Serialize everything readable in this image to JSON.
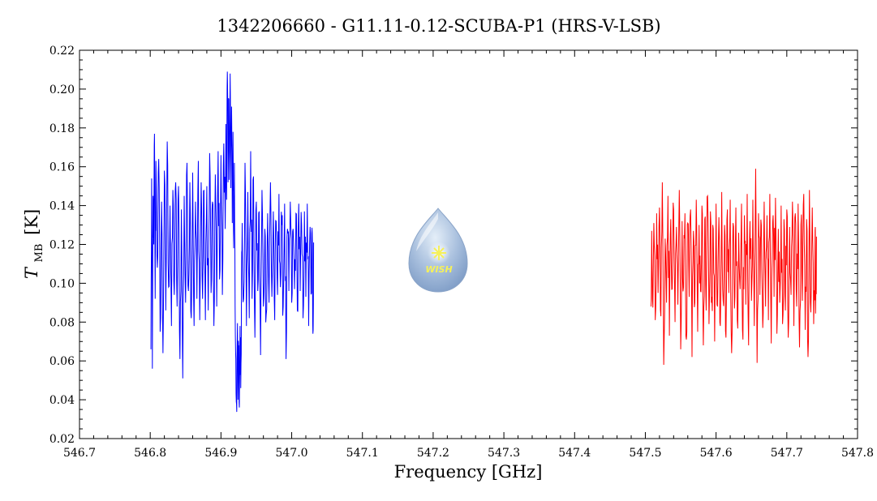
{
  "chart_data": {
    "type": "line",
    "title": "1342206660 - G11.11-0.12-SCUBA-P1 (HRS-V-LSB)",
    "xlabel": "Frequency [GHz]",
    "ylabel_main": "T",
    "ylabel_sub": "MB",
    "ylabel_unit": "[K]",
    "xlim": [
      546.7,
      547.8
    ],
    "ylim": [
      0.02,
      0.22
    ],
    "xticks": [
      "546.7",
      "546.8",
      "546.9",
      "547.0",
      "547.1",
      "547.2",
      "547.3",
      "547.4",
      "547.5",
      "547.6",
      "547.7",
      "547.8"
    ],
    "yticks": [
      "0.02",
      "0.04",
      "0.06",
      "0.08",
      "0.10",
      "0.12",
      "0.14",
      "0.16",
      "0.18",
      "0.20",
      "0.22"
    ],
    "grid": false,
    "logo_text": "WISH",
    "series": [
      {
        "color": "#0000ff",
        "x_range": [
          546.801,
          547.031
        ],
        "points": [
          [
            546.801,
            0.066
          ],
          [
            546.802,
            0.154
          ],
          [
            546.803,
            0.056
          ],
          [
            546.804,
            0.145
          ],
          [
            546.805,
            0.12
          ],
          [
            546.806,
            0.177
          ],
          [
            546.807,
            0.092
          ],
          [
            546.808,
            0.163
          ],
          [
            546.81,
            0.108
          ],
          [
            546.812,
            0.164
          ],
          [
            546.814,
            0.075
          ],
          [
            546.816,
            0.142
          ],
          [
            546.818,
            0.064
          ],
          [
            546.82,
            0.158
          ],
          [
            546.822,
            0.086
          ],
          [
            546.824,
            0.173
          ],
          [
            546.826,
            0.098
          ],
          [
            546.828,
            0.14
          ],
          [
            546.83,
            0.078
          ],
          [
            546.832,
            0.148
          ],
          [
            546.834,
            0.094
          ],
          [
            546.836,
            0.152
          ],
          [
            546.838,
            0.088
          ],
          [
            546.84,
            0.15
          ],
          [
            546.842,
            0.061
          ],
          [
            546.844,
            0.138
          ],
          [
            546.846,
            0.051
          ],
          [
            546.848,
            0.145
          ],
          [
            546.85,
            0.09
          ],
          [
            546.852,
            0.162
          ],
          [
            546.854,
            0.096
          ],
          [
            546.856,
            0.152
          ],
          [
            546.858,
            0.082
          ],
          [
            546.86,
            0.157
          ],
          [
            546.862,
            0.078
          ],
          [
            546.864,
            0.142
          ],
          [
            546.866,
            0.092
          ],
          [
            546.868,
            0.163
          ],
          [
            546.87,
            0.081
          ],
          [
            546.872,
            0.152
          ],
          [
            546.874,
            0.092
          ],
          [
            546.876,
            0.148
          ],
          [
            546.878,
            0.081
          ],
          [
            546.88,
            0.15
          ],
          [
            546.882,
            0.086
          ],
          [
            546.884,
            0.167
          ],
          [
            546.886,
            0.095
          ],
          [
            546.888,
            0.142
          ],
          [
            546.89,
            0.078
          ],
          [
            546.892,
            0.156
          ],
          [
            546.894,
            0.088
          ],
          [
            546.896,
            0.168
          ],
          [
            546.898,
            0.102
          ],
          [
            546.9,
            0.166
          ],
          [
            546.902,
            0.094
          ],
          [
            546.904,
            0.172
          ],
          [
            546.906,
            0.128
          ],
          [
            546.907,
            0.182
          ],
          [
            546.908,
            0.143
          ],
          [
            546.909,
            0.209
          ],
          [
            546.91,
            0.152
          ],
          [
            546.911,
            0.195
          ],
          [
            546.912,
            0.162
          ],
          [
            546.913,
            0.208
          ],
          [
            546.914,
            0.149
          ],
          [
            546.915,
            0.191
          ],
          [
            546.916,
            0.131
          ],
          [
            546.917,
            0.178
          ],
          [
            546.918,
            0.118
          ],
          [
            546.919,
            0.162
          ],
          [
            546.92,
            0.088
          ],
          [
            546.921,
            0.061
          ],
          [
            546.922,
            0.038
          ],
          [
            546.923,
            0.071
          ],
          [
            546.924,
            0.04
          ],
          [
            546.925,
            0.066
          ],
          [
            546.926,
            0.036
          ],
          [
            546.927,
            0.078
          ],
          [
            546.928,
            0.046
          ],
          [
            546.929,
            0.102
          ],
          [
            546.93,
            0.131
          ],
          [
            546.932,
            0.092
          ],
          [
            546.934,
            0.162
          ],
          [
            546.936,
            0.078
          ],
          [
            546.938,
            0.147
          ],
          [
            546.94,
            0.082
          ],
          [
            546.942,
            0.168
          ],
          [
            546.944,
            0.092
          ],
          [
            546.946,
            0.155
          ],
          [
            546.948,
            0.072
          ],
          [
            546.95,
            0.142
          ],
          [
            546.952,
            0.096
          ],
          [
            546.954,
            0.137
          ],
          [
            546.956,
            0.063
          ],
          [
            546.958,
            0.148
          ],
          [
            546.96,
            0.088
          ],
          [
            546.962,
            0.128
          ],
          [
            546.964,
            0.084
          ],
          [
            546.966,
            0.136
          ],
          [
            546.968,
            0.09
          ],
          [
            546.97,
            0.152
          ],
          [
            546.972,
            0.093
          ],
          [
            546.974,
            0.137
          ],
          [
            546.976,
            0.081
          ],
          [
            546.978,
            0.132
          ],
          [
            546.98,
            0.094
          ],
          [
            546.982,
            0.146
          ],
          [
            546.984,
            0.098
          ],
          [
            546.986,
            0.13
          ],
          [
            546.988,
            0.088
          ],
          [
            546.99,
            0.141
          ],
          [
            546.992,
            0.061
          ],
          [
            546.994,
            0.128
          ],
          [
            546.996,
            0.096
          ],
          [
            546.998,
            0.142
          ],
          [
            547.0,
            0.09
          ],
          [
            547.002,
            0.128
          ],
          [
            547.004,
            0.097
          ],
          [
            547.006,
            0.136
          ],
          [
            547.008,
            0.086
          ],
          [
            547.01,
            0.141
          ],
          [
            547.012,
            0.096
          ],
          [
            547.014,
            0.13
          ],
          [
            547.016,
            0.082
          ],
          [
            547.018,
            0.137
          ],
          [
            547.02,
            0.093
          ],
          [
            547.022,
            0.141
          ],
          [
            547.024,
            0.078
          ],
          [
            547.026,
            0.129
          ],
          [
            547.028,
            0.095
          ],
          [
            547.029,
            0.126
          ],
          [
            547.03,
            0.074
          ],
          [
            547.031,
            0.121
          ]
        ]
      },
      {
        "color": "#ff0000",
        "x_range": [
          547.508,
          547.742
        ],
        "points": [
          [
            547.508,
            0.088
          ],
          [
            547.509,
            0.127
          ],
          [
            547.51,
            0.092
          ],
          [
            547.512,
            0.131
          ],
          [
            547.514,
            0.081
          ],
          [
            547.516,
            0.136
          ],
          [
            547.518,
            0.095
          ],
          [
            547.52,
            0.139
          ],
          [
            547.522,
            0.083
          ],
          [
            547.524,
            0.152
          ],
          [
            547.526,
            0.058
          ],
          [
            547.528,
            0.123
          ],
          [
            547.53,
            0.09
          ],
          [
            547.532,
            0.145
          ],
          [
            547.534,
            0.073
          ],
          [
            547.536,
            0.133
          ],
          [
            547.538,
            0.097
          ],
          [
            547.54,
            0.138
          ],
          [
            547.542,
            0.08
          ],
          [
            547.544,
            0.129
          ],
          [
            547.546,
            0.089
          ],
          [
            547.548,
            0.148
          ],
          [
            547.55,
            0.066
          ],
          [
            547.552,
            0.132
          ],
          [
            547.554,
            0.098
          ],
          [
            547.556,
            0.136
          ],
          [
            547.558,
            0.071
          ],
          [
            547.56,
            0.131
          ],
          [
            547.562,
            0.093
          ],
          [
            547.564,
            0.138
          ],
          [
            547.566,
            0.062
          ],
          [
            547.568,
            0.127
          ],
          [
            547.57,
            0.09
          ],
          [
            547.572,
            0.143
          ],
          [
            547.574,
            0.075
          ],
          [
            547.576,
            0.13
          ],
          [
            547.578,
            0.096
          ],
          [
            547.58,
            0.14
          ],
          [
            547.582,
            0.068
          ],
          [
            547.584,
            0.133
          ],
          [
            547.586,
            0.086
          ],
          [
            547.588,
            0.145
          ],
          [
            547.59,
            0.079
          ],
          [
            547.592,
            0.137
          ],
          [
            547.594,
            0.093
          ],
          [
            547.596,
            0.128
          ],
          [
            547.598,
            0.07
          ],
          [
            547.6,
            0.141
          ],
          [
            547.602,
            0.088
          ],
          [
            547.604,
            0.134
          ],
          [
            547.606,
            0.078
          ],
          [
            547.608,
            0.147
          ],
          [
            547.61,
            0.091
          ],
          [
            547.612,
            0.13
          ],
          [
            547.614,
            0.072
          ],
          [
            547.616,
            0.138
          ],
          [
            547.618,
            0.095
          ],
          [
            547.62,
            0.143
          ],
          [
            547.622,
            0.064
          ],
          [
            547.624,
            0.131
          ],
          [
            547.626,
            0.087
          ],
          [
            547.628,
            0.139
          ],
          [
            547.63,
            0.081
          ],
          [
            547.632,
            0.126
          ],
          [
            547.634,
            0.097
          ],
          [
            547.636,
            0.141
          ],
          [
            547.638,
            0.071
          ],
          [
            547.64,
            0.135
          ],
          [
            547.642,
            0.089
          ],
          [
            547.644,
            0.146
          ],
          [
            547.646,
            0.068
          ],
          [
            547.648,
            0.132
          ],
          [
            547.65,
            0.091
          ],
          [
            547.652,
            0.143
          ],
          [
            547.654,
            0.078
          ],
          [
            547.656,
            0.159
          ],
          [
            547.658,
            0.059
          ],
          [
            547.66,
            0.136
          ],
          [
            547.662,
            0.094
          ],
          [
            547.664,
            0.13
          ],
          [
            547.666,
            0.077
          ],
          [
            547.668,
            0.142
          ],
          [
            547.67,
            0.088
          ],
          [
            547.672,
            0.135
          ],
          [
            547.674,
            0.081
          ],
          [
            547.676,
            0.146
          ],
          [
            547.678,
            0.069
          ],
          [
            547.68,
            0.131
          ],
          [
            547.682,
            0.093
          ],
          [
            547.684,
            0.144
          ],
          [
            547.686,
            0.074
          ],
          [
            547.688,
            0.128
          ],
          [
            547.69,
            0.09
          ],
          [
            547.692,
            0.14
          ],
          [
            547.694,
            0.079
          ],
          [
            547.696,
            0.133
          ],
          [
            547.698,
            0.086
          ],
          [
            547.7,
            0.138
          ],
          [
            547.702,
            0.072
          ],
          [
            547.704,
            0.129
          ],
          [
            547.706,
            0.094
          ],
          [
            547.708,
            0.142
          ],
          [
            547.71,
            0.078
          ],
          [
            547.712,
            0.136
          ],
          [
            547.714,
            0.088
          ],
          [
            547.716,
            0.141
          ],
          [
            547.718,
            0.067
          ],
          [
            547.72,
            0.13
          ],
          [
            547.722,
            0.091
          ],
          [
            547.724,
            0.146
          ],
          [
            547.726,
            0.076
          ],
          [
            547.728,
            0.133
          ],
          [
            547.73,
            0.062
          ],
          [
            547.732,
            0.148
          ],
          [
            547.734,
            0.085
          ],
          [
            547.736,
            0.139
          ],
          [
            547.738,
            0.079
          ],
          [
            547.74,
            0.127
          ],
          [
            547.741,
            0.092
          ],
          [
            547.742,
            0.124
          ]
        ]
      }
    ]
  }
}
